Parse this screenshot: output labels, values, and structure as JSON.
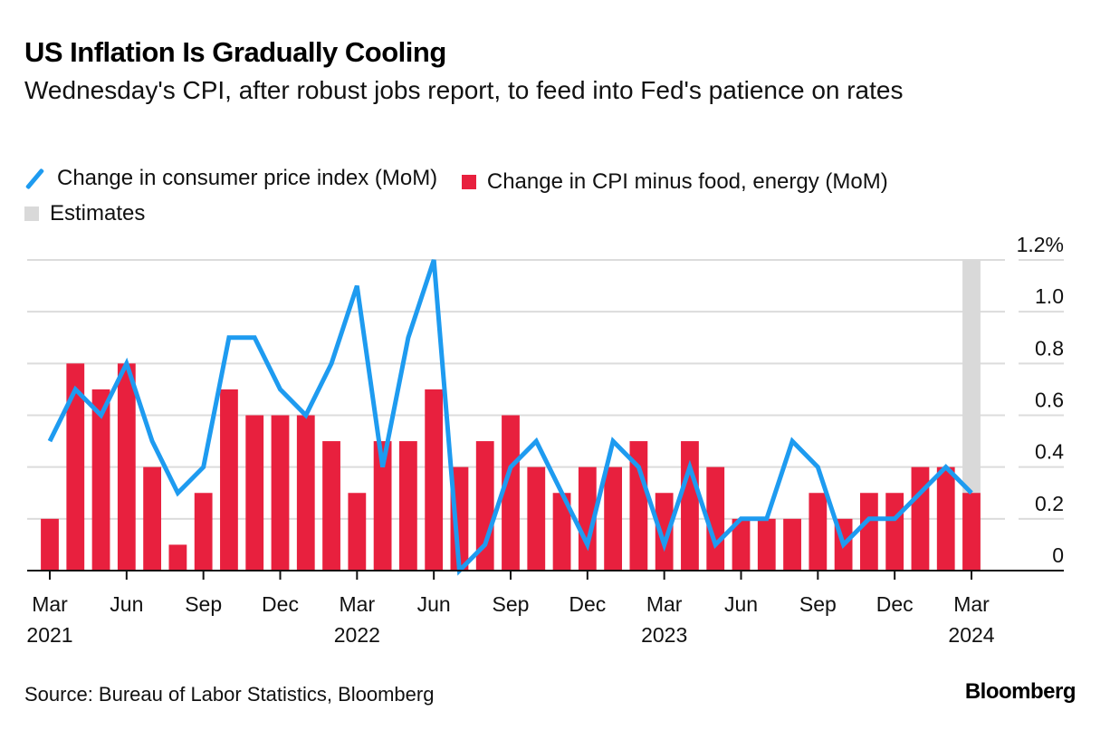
{
  "header": {
    "title": "US Inflation Is Gradually Cooling",
    "subtitle": "Wednesday's CPI, after robust jobs report, to feed into Fed's patience on rates"
  },
  "legend": [
    {
      "label": "Change in consumer price index (MoM)",
      "type": "line",
      "color": "#1e9bf0"
    },
    {
      "label": "Change in CPI minus food, energy (MoM)",
      "type": "bar",
      "color": "#e8203e"
    },
    {
      "label": "Estimates",
      "type": "band",
      "color": "#d9d9d9"
    }
  ],
  "footer": {
    "source": "Source: Bureau of Labor Statistics, Bloomberg",
    "logo": "Bloomberg"
  },
  "chart_data": {
    "type": "bar",
    "title": "US Inflation Is Gradually Cooling",
    "subtitle": "Wednesday's CPI, after robust jobs report, to feed into Fed's patience on rates",
    "xlabel": "",
    "ylabel": "",
    "ylim": [
      0,
      1.2
    ],
    "y_ticks": [
      {
        "value": 0,
        "label": "0"
      },
      {
        "value": 0.2,
        "label": "0.2"
      },
      {
        "value": 0.4,
        "label": "0.4"
      },
      {
        "value": 0.6,
        "label": "0.6"
      },
      {
        "value": 0.8,
        "label": "0.8"
      },
      {
        "value": 1.0,
        "label": "1.0"
      },
      {
        "value": 1.2,
        "label": "1.2%"
      }
    ],
    "y_axis_position": "right",
    "grid": true,
    "legend_position": "top-left",
    "x": [
      "2021-03",
      "2021-04",
      "2021-05",
      "2021-06",
      "2021-07",
      "2021-08",
      "2021-09",
      "2021-10",
      "2021-11",
      "2021-12",
      "2022-01",
      "2022-02",
      "2022-03",
      "2022-04",
      "2022-05",
      "2022-06",
      "2022-07",
      "2022-08",
      "2022-09",
      "2022-10",
      "2022-11",
      "2022-12",
      "2023-01",
      "2023-02",
      "2023-03",
      "2023-04",
      "2023-05",
      "2023-06",
      "2023-07",
      "2023-08",
      "2023-09",
      "2023-10",
      "2023-11",
      "2023-12",
      "2024-01",
      "2024-02",
      "2024-03"
    ],
    "x_ticks": [
      {
        "index": 0,
        "label": "Mar",
        "year": "2021"
      },
      {
        "index": 3,
        "label": "Jun",
        "year": ""
      },
      {
        "index": 6,
        "label": "Sep",
        "year": ""
      },
      {
        "index": 9,
        "label": "Dec",
        "year": ""
      },
      {
        "index": 12,
        "label": "Mar",
        "year": "2022"
      },
      {
        "index": 15,
        "label": "Jun",
        "year": ""
      },
      {
        "index": 18,
        "label": "Sep",
        "year": ""
      },
      {
        "index": 21,
        "label": "Dec",
        "year": ""
      },
      {
        "index": 24,
        "label": "Mar",
        "year": "2023"
      },
      {
        "index": 27,
        "label": "Jun",
        "year": ""
      },
      {
        "index": 30,
        "label": "Sep",
        "year": ""
      },
      {
        "index": 33,
        "label": "Dec",
        "year": ""
      },
      {
        "index": 36,
        "label": "Mar",
        "year": "2024"
      }
    ],
    "series": [
      {
        "name": "Change in CPI minus food, energy (MoM)",
        "type": "bar",
        "color": "#e8203e",
        "values": [
          0.2,
          0.8,
          0.7,
          0.8,
          0.4,
          0.1,
          0.3,
          0.7,
          0.6,
          0.6,
          0.6,
          0.5,
          0.3,
          0.5,
          0.5,
          0.7,
          0.4,
          0.5,
          0.6,
          0.4,
          0.3,
          0.4,
          0.4,
          0.5,
          0.3,
          0.5,
          0.4,
          0.2,
          0.2,
          0.2,
          0.3,
          0.2,
          0.3,
          0.3,
          0.4,
          0.4,
          0.3
        ]
      },
      {
        "name": "Change in consumer price index (MoM)",
        "type": "line",
        "color": "#1e9bf0",
        "values": [
          0.5,
          0.7,
          0.6,
          0.8,
          0.5,
          0.3,
          0.4,
          0.9,
          0.9,
          0.7,
          0.6,
          0.8,
          1.1,
          0.4,
          0.9,
          1.2,
          0.0,
          0.1,
          0.4,
          0.5,
          0.3,
          0.1,
          0.5,
          0.4,
          0.1,
          0.4,
          0.1,
          0.2,
          0.2,
          0.5,
          0.4,
          0.1,
          0.2,
          0.2,
          0.3,
          0.4,
          0.3
        ]
      }
    ],
    "estimates": {
      "label": "Estimates",
      "start_index": 36,
      "end_index": 36,
      "color": "#d9d9d9"
    }
  }
}
